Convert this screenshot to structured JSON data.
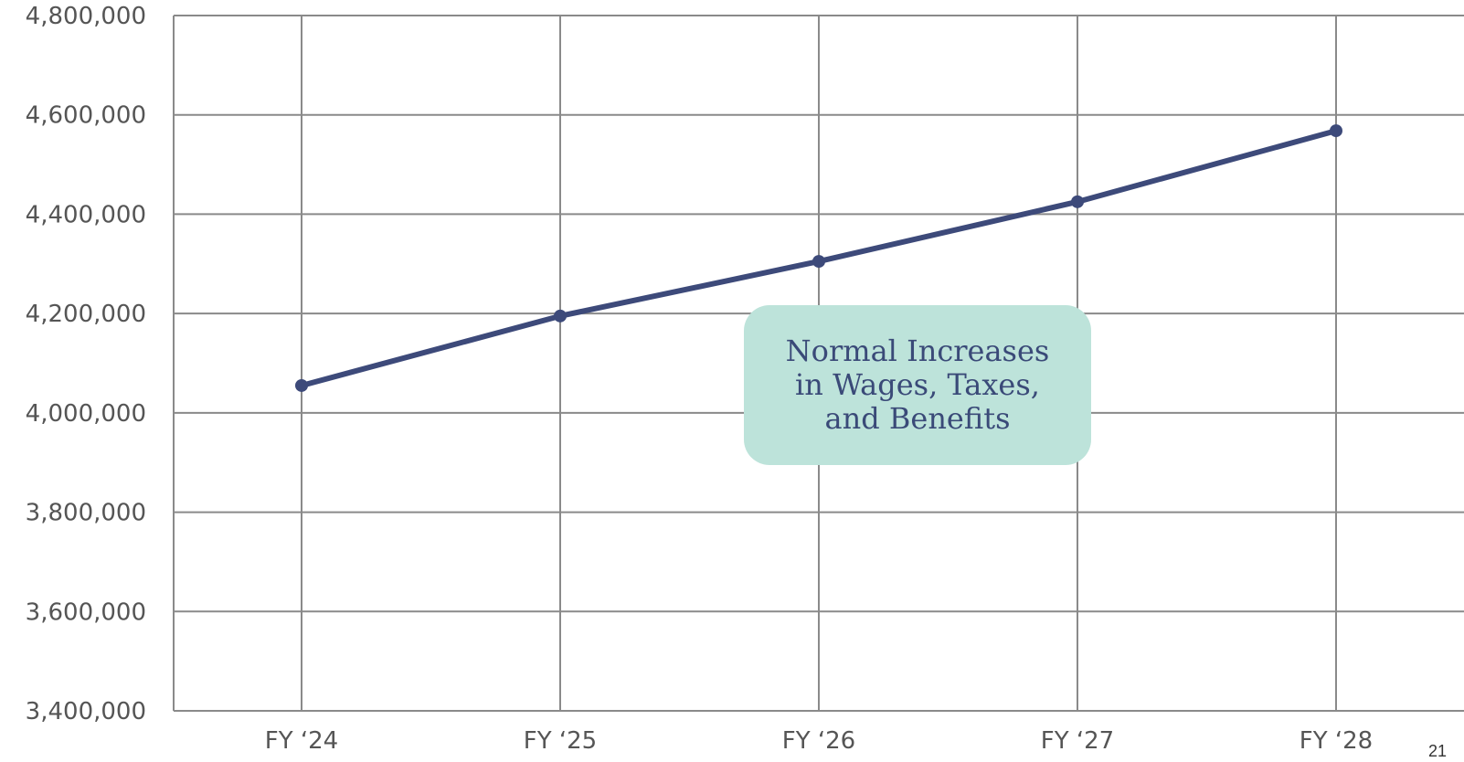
{
  "chart_data": {
    "type": "line",
    "categories": [
      "FY ‘24",
      "FY ‘25",
      "FY ‘26",
      "FY ‘27",
      "FY ‘28"
    ],
    "series": [
      {
        "values": [
          4055000,
          4195000,
          4305000,
          4425000,
          4568000
        ]
      }
    ],
    "ylim": [
      3400000,
      4800000
    ],
    "yticks": [
      3400000,
      3600000,
      3800000,
      4000000,
      4200000,
      4400000,
      4600000,
      4800000
    ],
    "ytick_labels": [
      "3,400,000",
      "3,600,000",
      "3,800,000",
      "4,000,000",
      "4,200,000",
      "4,400,000",
      "4,600,000",
      "4,800,000"
    ],
    "grid": true,
    "annotation": "Normal Increases in Wages, Taxes, and Benefits",
    "colors": {
      "line": "#3d4a7a",
      "grid": "#8a8a8a",
      "annotation_bg": "#bde3da",
      "annotation_text": "#3a4a78"
    }
  },
  "page_number": "21"
}
